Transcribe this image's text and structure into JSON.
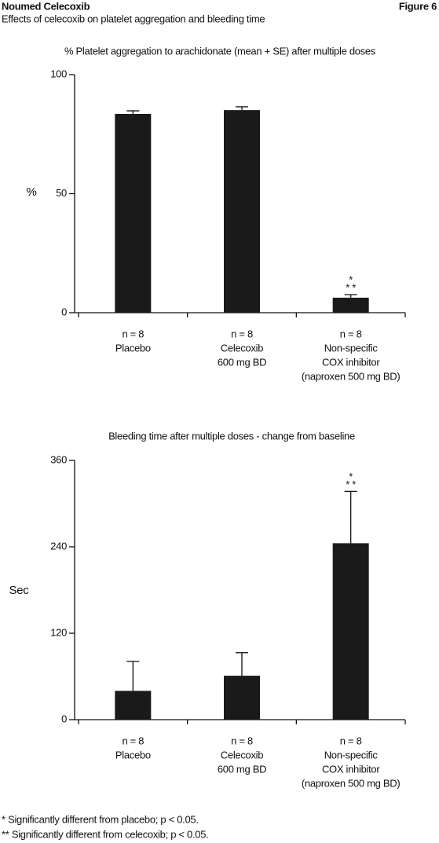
{
  "header": {
    "title": "Noumed Celecoxib",
    "figure": "Figure 6",
    "subtitle": "Effects of celecoxib on platelet aggregation and bleeding time"
  },
  "chart_data": [
    {
      "type": "bar",
      "title": "% Platelet aggregation to arachidonate (mean + SE) after multiple doses",
      "ylabel": "%",
      "categories": [
        [
          "n = 8",
          "Placebo"
        ],
        [
          "n = 8",
          "Celecoxib",
          "600 mg BD"
        ],
        [
          "n = 8",
          "Non-specific",
          "COX inhibitor",
          "(naproxen 500 mg BD)"
        ]
      ],
      "values": [
        83.5,
        85.1,
        6.3
      ],
      "errors": [
        1.3,
        1.4,
        1.3
      ],
      "color": "#1a1a1a",
      "annotations": [
        "*",
        "* *"
      ],
      "ylim": [
        0,
        100
      ],
      "yticks": [
        0,
        50,
        100
      ],
      "grid": false
    },
    {
      "type": "bar",
      "title": "Bleeding time after multiple doses - change from baseline",
      "ylabel": "Sec",
      "categories": [
        [
          "n = 8",
          "Placebo"
        ],
        [
          "n = 8",
          "Celecoxib",
          "600 mg BD"
        ],
        [
          "n = 8",
          "Non-specific",
          "COX inhibitor",
          "(naproxen 500 mg BD)"
        ]
      ],
      "values": [
        40,
        61,
        245
      ],
      "errors": [
        41,
        32,
        72
      ],
      "color": "#1a1a1a",
      "annotations": [
        "*",
        "* *"
      ],
      "ylim": [
        0,
        360
      ],
      "yticks": [
        0,
        120,
        240,
        360
      ],
      "grid": false
    }
  ],
  "footnotes": [
    "* Significantly different from placebo; p < 0.05.",
    "** Significantly different from celecoxib; p < 0.05."
  ]
}
